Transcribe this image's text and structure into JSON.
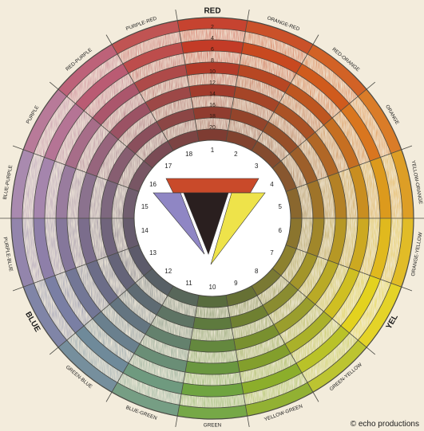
{
  "wheel": {
    "segment_labels": [
      {
        "text": "RED",
        "color": "#c33a26"
      },
      {
        "text": "ORANGE-RED",
        "color": "#c8481f"
      },
      {
        "text": "RED-ORANGE",
        "color": "#d05a1c"
      },
      {
        "text": "ORANGE",
        "color": "#d9761e"
      },
      {
        "text": "YELLOW-ORANGE",
        "color": "#dc9a1c"
      },
      {
        "text": "ORANGE-YELLOW",
        "color": "#e0b91d"
      },
      {
        "text": "YEL",
        "color": "#e3d21e"
      },
      {
        "text": "GREEN-YELLOW",
        "color": "#b9c227"
      },
      {
        "text": "YELLOW-GREEN",
        "color": "#8cae2a"
      },
      {
        "text": "GREEN",
        "color": "#6fa43f"
      },
      {
        "text": "BLUE-GREEN",
        "color": "#6f9a7f"
      },
      {
        "text": "GREEN-BLUE",
        "color": "#6f8a9a"
      },
      {
        "text": "BLUE",
        "color": "#7a7fa4"
      },
      {
        "text": "PURPLE-BLUE",
        "color": "#8e7fa9"
      },
      {
        "text": "BLUE-PURPLE",
        "color": "#a585ad"
      },
      {
        "text": "PURPLE",
        "color": "#b57495"
      },
      {
        "text": "RED-PURPLE",
        "color": "#ba5a73"
      },
      {
        "text": "PURPLE-RED",
        "color": "#bd4c4b"
      }
    ],
    "segment_numbers": [
      "1",
      "2",
      "3",
      "4",
      "5",
      "6",
      "7",
      "8",
      "9",
      "10",
      "11",
      "12",
      "13",
      "14",
      "15",
      "16",
      "17",
      "18"
    ],
    "ring_numbers": [
      "2",
      "4",
      "6",
      "8",
      "10",
      "12",
      "14",
      "16",
      "18",
      "20"
    ],
    "triangle": {
      "top_color": "#c94a2a",
      "left_color": "#8f86c4",
      "right_color": "#eee34a",
      "center_color": "#2a1f1f"
    },
    "outline_color": "#4a4a44",
    "hub_color": "#ffffff"
  },
  "credit": "© echo productions"
}
